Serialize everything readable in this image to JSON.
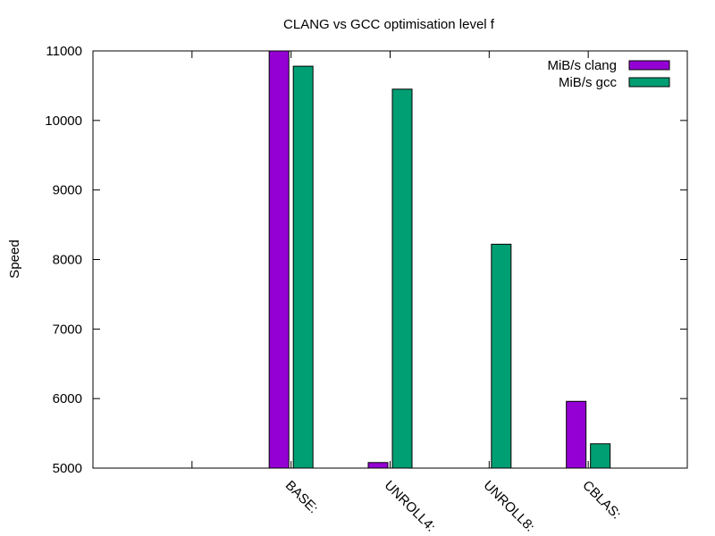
{
  "chart_data": {
    "type": "bar",
    "title": "CLANG vs GCC optimisation level f",
    "xlabel": "",
    "ylabel": "Speed",
    "ylim": [
      5000,
      11000
    ],
    "yticks": [
      5000,
      6000,
      7000,
      8000,
      9000,
      10000,
      11000
    ],
    "categories": [
      "",
      "BASE:",
      "UNROLL4:",
      "UNROLL8:",
      "CBLAS:"
    ],
    "series": [
      {
        "name": "MiB/s clang",
        "color": "#9400d3",
        "values": [
          null,
          11000,
          5080,
          null,
          5960
        ]
      },
      {
        "name": "MiB/s gcc",
        "color": "#009e73",
        "values": [
          null,
          10780,
          10450,
          8220,
          5350
        ]
      }
    ],
    "legend_position": "top-right",
    "grid": false
  }
}
